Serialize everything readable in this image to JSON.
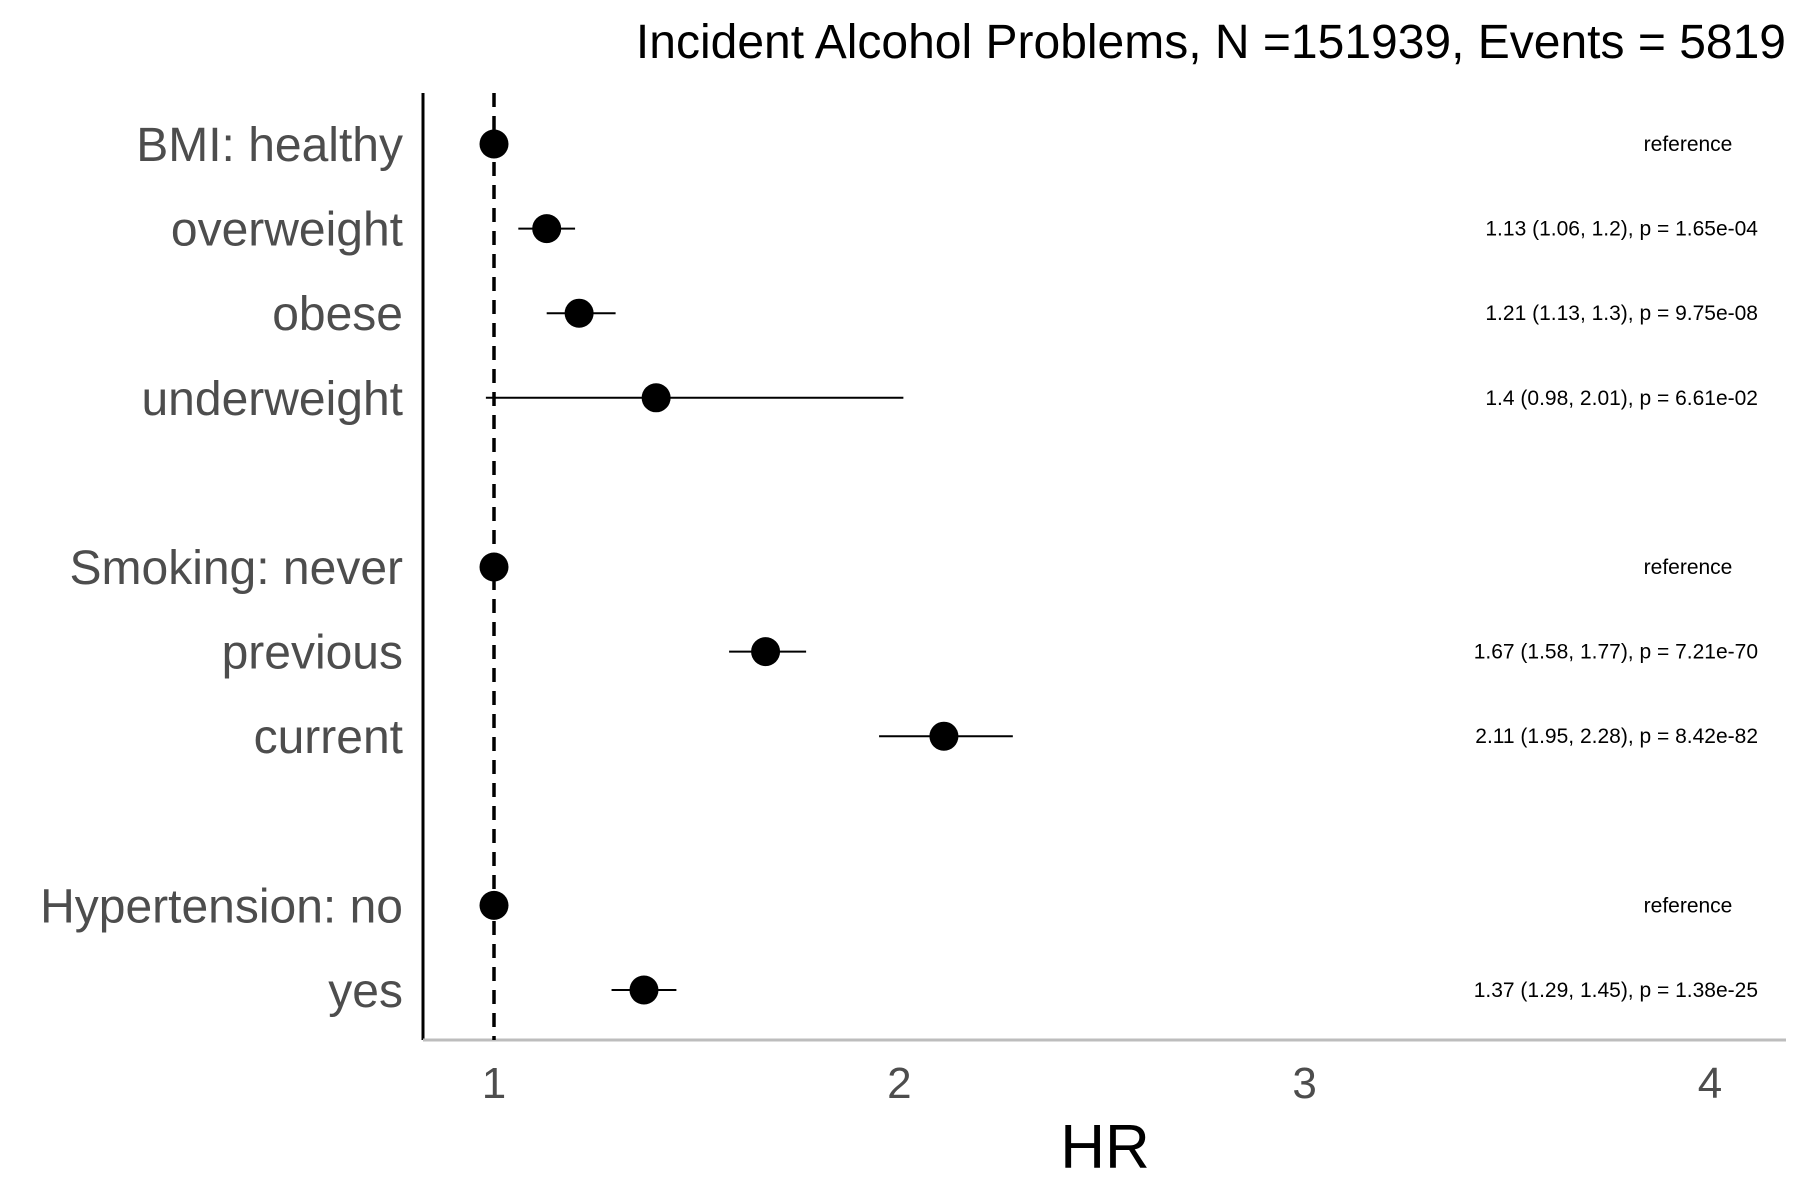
{
  "chart_data": {
    "type": "forest",
    "title": "Incident Alcohol Problems, N =151939, Events = 5819",
    "xlabel": "HR",
    "xlim": [
      0.83,
      4.1
    ],
    "xticks": [
      "1",
      "2",
      "3",
      "4"
    ],
    "xtick_values": [
      1,
      2,
      3,
      4
    ],
    "reference_line": 1,
    "rows": [
      {
        "label": "BMI: healthy",
        "hr": 1.0,
        "lo": 1.0,
        "hi": 1.0,
        "annotation": "reference",
        "is_reference": true
      },
      {
        "label": "overweight",
        "hr": 1.13,
        "lo": 1.06,
        "hi": 1.2,
        "annotation": "1.13 (1.06, 1.2), p = 1.65e-04",
        "is_reference": false
      },
      {
        "label": "obese",
        "hr": 1.21,
        "lo": 1.13,
        "hi": 1.3,
        "annotation": "1.21 (1.13, 1.3), p = 9.75e-08",
        "is_reference": false
      },
      {
        "label": "underweight",
        "hr": 1.4,
        "lo": 0.98,
        "hi": 2.01,
        "annotation": "1.4 (0.98, 2.01), p = 6.61e-02",
        "is_reference": false
      },
      {
        "label": "",
        "spacer": true
      },
      {
        "label": "Smoking: never",
        "hr": 1.0,
        "lo": 1.0,
        "hi": 1.0,
        "annotation": "reference",
        "is_reference": true
      },
      {
        "label": "previous",
        "hr": 1.67,
        "lo": 1.58,
        "hi": 1.77,
        "annotation": "1.67 (1.58, 1.77), p = 7.21e-70",
        "is_reference": false
      },
      {
        "label": "current",
        "hr": 2.11,
        "lo": 1.95,
        "hi": 2.28,
        "annotation": "2.11 (1.95, 2.28), p = 8.42e-82",
        "is_reference": false
      },
      {
        "label": "",
        "spacer": true
      },
      {
        "label": "Hypertension: no",
        "hr": 1.0,
        "lo": 1.0,
        "hi": 1.0,
        "annotation": "reference",
        "is_reference": true
      },
      {
        "label": "yes",
        "hr": 1.37,
        "lo": 1.29,
        "hi": 1.45,
        "annotation": "1.37 (1.29, 1.45), p = 1.38e-25",
        "is_reference": false
      }
    ]
  }
}
